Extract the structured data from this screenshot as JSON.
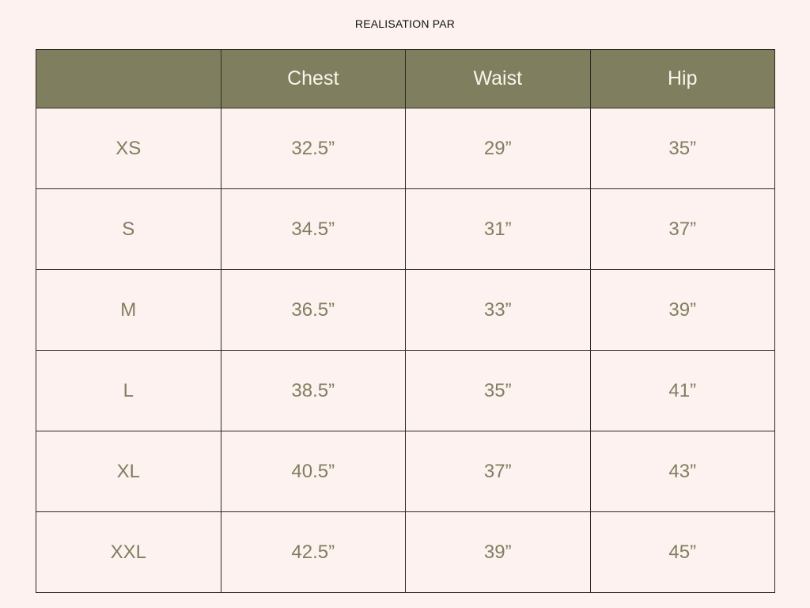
{
  "title": "REALISATION PAR",
  "colors": {
    "background": "#fdf2f0",
    "header": "#7f7f5f",
    "header_text": "#fbf3ea",
    "cell_text": "#7f7f5f"
  },
  "table": {
    "headers": [
      "",
      "Chest",
      "Waist",
      "Hip"
    ],
    "rows": [
      [
        "XS",
        "32.5”",
        "29”",
        "35”"
      ],
      [
        "S",
        "34.5”",
        "31”",
        "37”"
      ],
      [
        "M",
        "36.5”",
        "33”",
        "39”"
      ],
      [
        "L",
        "38.5”",
        "35”",
        "41”"
      ],
      [
        "XL",
        "40.5”",
        "37”",
        "43”"
      ],
      [
        "XXL",
        "42.5”",
        "39”",
        "45”"
      ]
    ]
  }
}
